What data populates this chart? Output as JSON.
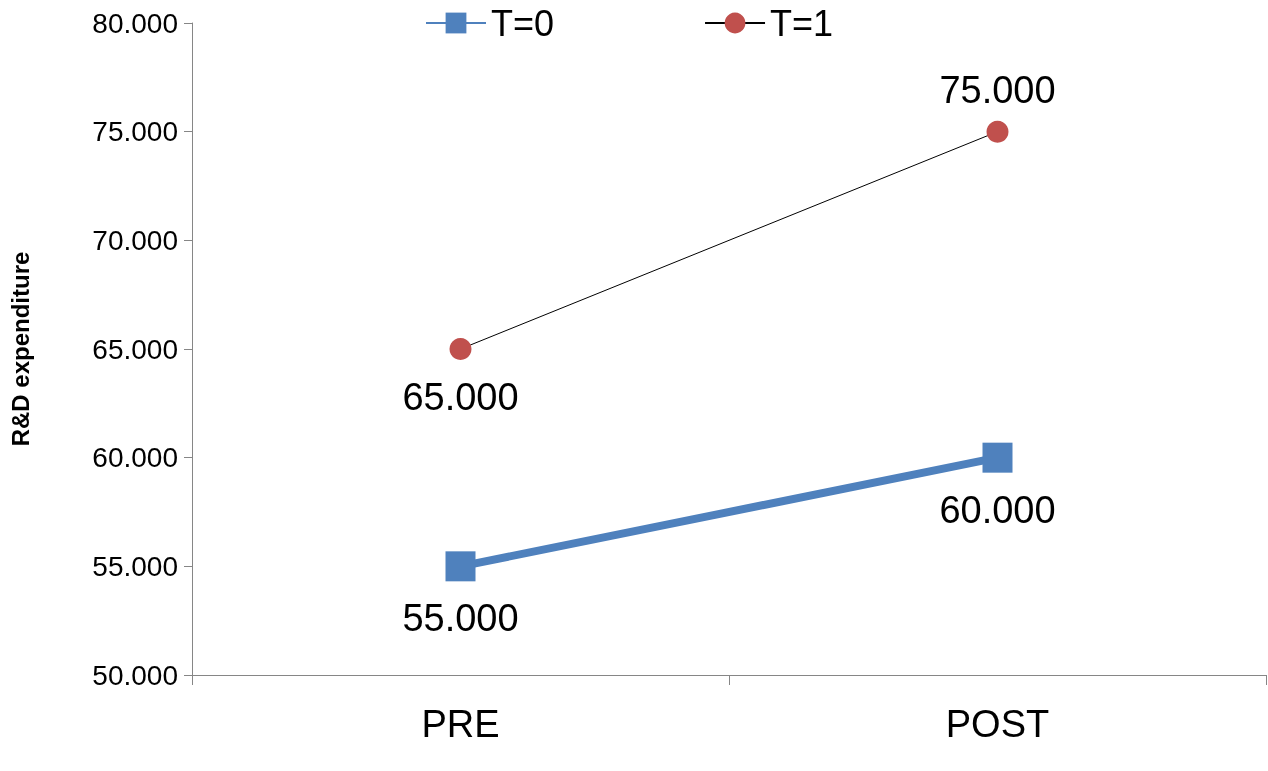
{
  "chart_data": {
    "type": "line",
    "ylabel": "R&D expenditure",
    "categories": [
      "PRE",
      "POST"
    ],
    "series": [
      {
        "name": "T=0",
        "color": "#4f81bd",
        "marker": "square",
        "values": [
          55000,
          60000
        ],
        "value_labels": [
          "55.000",
          "60.000"
        ]
      },
      {
        "name": "T=1",
        "color": "#c0504d",
        "marker": "circle",
        "values": [
          65000,
          75000
        ],
        "value_labels": [
          "65.000",
          "75.000"
        ]
      }
    ],
    "ylim": [
      50000,
      80000
    ],
    "yticks": [
      {
        "value": 50000,
        "label": "50.000"
      },
      {
        "value": 55000,
        "label": "55.000"
      },
      {
        "value": 60000,
        "label": "60.000"
      },
      {
        "value": 65000,
        "label": "65.000"
      },
      {
        "value": 70000,
        "label": "70.000"
      },
      {
        "value": 75000,
        "label": "75.000"
      },
      {
        "value": 80000,
        "label": "80.000"
      }
    ],
    "grid": false,
    "legend": "top"
  }
}
